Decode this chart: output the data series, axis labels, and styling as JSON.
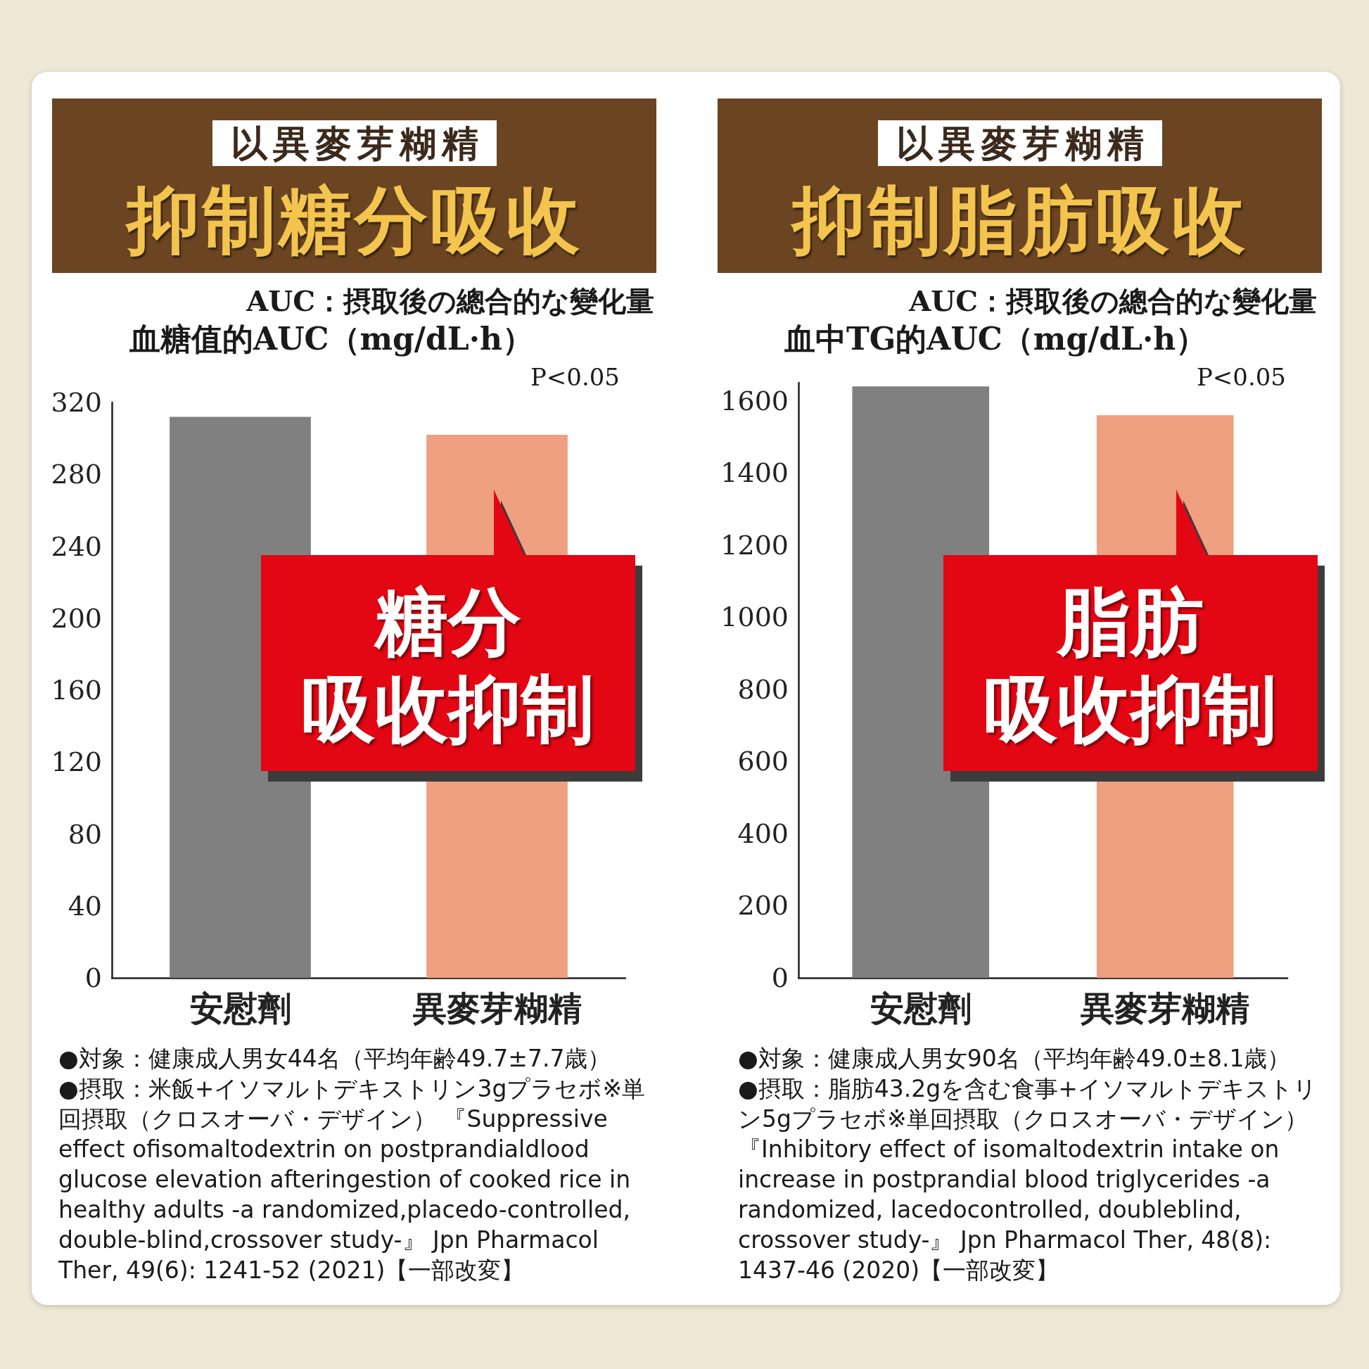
{
  "chart_data": [
    {
      "type": "bar",
      "subtitle": "以異麥芽糊精",
      "title": "抑制糖分吸收",
      "ylabel": "血糖值的AUC（mg/dL·h）",
      "categories": [
        "安慰劑",
        "異麥芽糊精"
      ],
      "values": [
        312,
        302
      ],
      "colors": [
        "#808080",
        "#efa080"
      ],
      "ylim": [
        0,
        320
      ],
      "yticks": [
        0,
        40,
        80,
        120,
        160,
        200,
        240,
        280,
        320
      ],
      "annotations": [
        "AUC：摂取後の總合的な變化量",
        "P<0.05",
        "糖分",
        "吸收抑制",
        "●対象：健康成人男女44名（平均年齢49.7±7.7歳）",
        "●摂取：米飯+イソマルトデキストリン3gプラセボ※単回摂取（クロスオーバ・デザイン） 『Suppressive effect ofisomaltodextrin on postprandialdlood glucose elevation afteringestion of cooked rice in healthy adults -a randomized,placedo-controlled, double-blind,crossover study-』 Jpn Pharmacol Ther, 49(6): 1241-52 (2021)【一部改変】"
      ]
    },
    {
      "type": "bar",
      "subtitle": "以異麥芽糊精",
      "title": "抑制脂肪吸收",
      "ylabel": "血中TG的AUC（mg/dL·h）",
      "categories": [
        "安慰劑",
        "異麥芽糊精"
      ],
      "values": [
        1640,
        1560
      ],
      "colors": [
        "#808080",
        "#efa080"
      ],
      "ylim": [
        0,
        1650
      ],
      "yticks": [
        0,
        200,
        400,
        600,
        800,
        1000,
        1200,
        1400,
        1600
      ],
      "annotations": [
        "AUC：摂取後の總合的な變化量",
        "P<0.05",
        "脂肪",
        "吸收抑制",
        "●対象：健康成人男女90名（平均年齢49.0±8.1歳）",
        "●摂取：脂肪43.2gを含む食事+イソマルトデキストリン5gプラセボ※単回摂取（クロスオーバ・デザイン）『Inhibitory effect of isomaltodextrin intake on increase in postprandial blood triglycerides -a randomized, lacedocontrolled, doubleblind, crossover study-』 Jpn Pharmacol Ther, 48(8): 1437-46 (2020)【一部改変】"
      ]
    }
  ]
}
